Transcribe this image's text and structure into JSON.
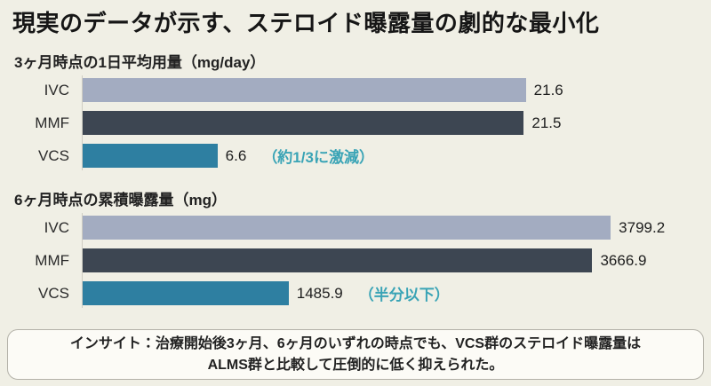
{
  "title": "現実のデータが示す、ステロイド曝露量の劇的な最小化",
  "colors": {
    "background": "#f0efe5",
    "bar_colors": [
      "#a3acc1",
      "#3d4652",
      "#2e7fa1"
    ],
    "annotation": "#3aa4b6",
    "axis_line": "#cfcdc3",
    "insight_border": "#b3b1a8",
    "insight_background": "#fcfbf6"
  },
  "chart_data": [
    {
      "type": "bar",
      "orientation": "horizontal",
      "title": "3ヶ月時点の1日平均用量（mg/day）",
      "categories": [
        "IVC",
        "MMF",
        "VCS"
      ],
      "values": [
        21.6,
        21.5,
        6.6
      ],
      "value_labels": [
        "21.6",
        "21.5",
        "6.6"
      ],
      "annotations": [
        "",
        "",
        "（約1/3に激減）"
      ],
      "xlabel": "",
      "ylabel": "",
      "xlim": [
        0,
        30
      ],
      "grid": false,
      "legend": "none"
    },
    {
      "type": "bar",
      "orientation": "horizontal",
      "title": "6ヶ月時点の累積曝露量（mg）",
      "categories": [
        "IVC",
        "MMF",
        "VCS"
      ],
      "values": [
        3799.2,
        3666.9,
        1485.9
      ],
      "value_labels": [
        "3799.2",
        "3666.9",
        "1485.9"
      ],
      "annotations": [
        "",
        "",
        "（半分以下）"
      ],
      "xlabel": "",
      "ylabel": "",
      "xlim": [
        0,
        4430
      ],
      "grid": false,
      "legend": "none"
    }
  ],
  "insight": {
    "line1": "インサイト：治療開始後3ヶ月、6ヶ月のいずれの時点でも、VCS群のステロイド曝露量は",
    "line2": "ALMS群と比較して圧倒的に低く抑えられた。"
  }
}
